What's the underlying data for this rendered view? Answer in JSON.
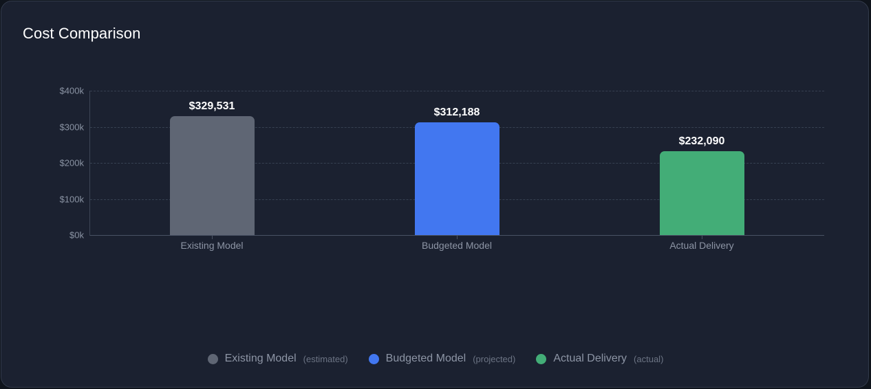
{
  "card": {
    "title": "Cost Comparison"
  },
  "chart_data": {
    "type": "bar",
    "title": "Cost Comparison",
    "xlabel": "",
    "ylabel": "",
    "ylim": [
      0,
      400000
    ],
    "yticks": [
      "$0k",
      "$100k",
      "$200k",
      "$300k",
      "$400k"
    ],
    "grid": true,
    "legend_position": "bottom",
    "categories": [
      "Existing Model",
      "Budgeted Model",
      "Actual Delivery"
    ],
    "values": [
      329531,
      312188,
      232090
    ],
    "value_labels": [
      "$329,531",
      "$312,188",
      "$232,090"
    ],
    "colors": [
      "#5f6674",
      "#4277f0",
      "#43ad77"
    ]
  },
  "legend": [
    {
      "label": "Existing Model",
      "note": "(estimated)",
      "color": "#5f6674"
    },
    {
      "label": "Budgeted Model",
      "note": "(projected)",
      "color": "#4277f0"
    },
    {
      "label": "Actual Delivery",
      "note": "(actual)",
      "color": "#43ad77"
    }
  ]
}
